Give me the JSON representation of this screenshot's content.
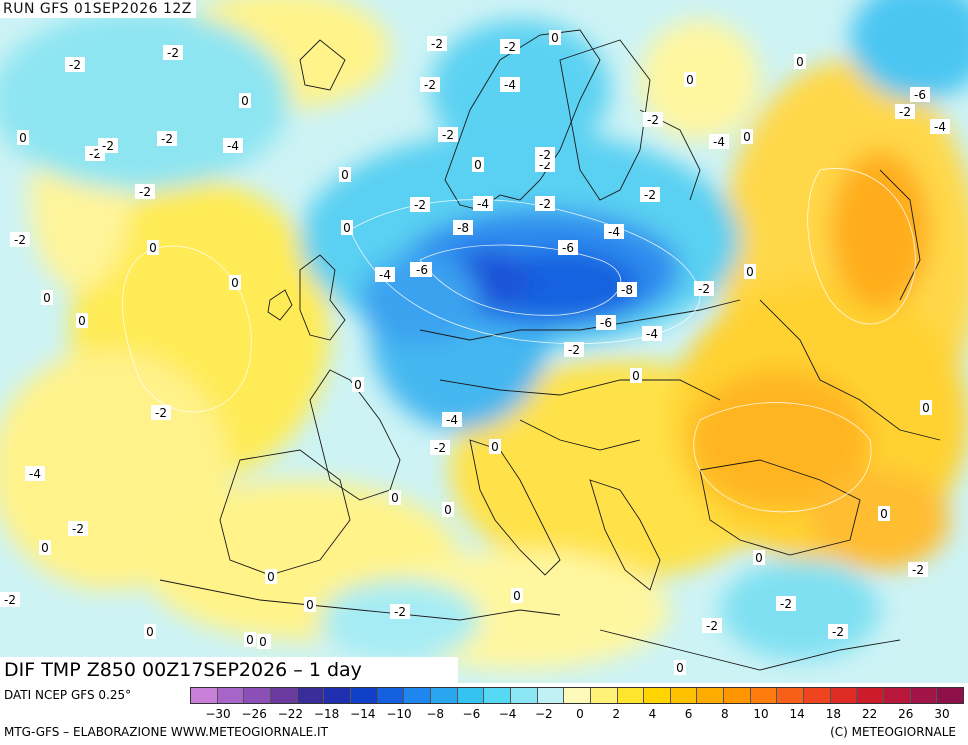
{
  "header": {
    "run_label": "RUN GFS 01SEP2026 12Z"
  },
  "map": {
    "title": "DIF TMP Z850 00Z17SEP2026 – 1 day",
    "contour_labels": [
      "-2",
      "-2",
      "-2",
      "0",
      "0",
      "-2",
      "-2",
      "-2",
      "-4",
      "-2",
      "0",
      "-2",
      "0",
      "0",
      "0",
      "0",
      "0",
      "-2",
      "-4",
      "-2",
      "0",
      "0",
      "-2",
      "0",
      "-6",
      "-4",
      "0",
      "0",
      "-2",
      "-2",
      "-2",
      "-2",
      "0",
      "0",
      "-8",
      "-4",
      "-2",
      "0",
      "-4",
      "-2",
      "0",
      "-2",
      "-6",
      "-4",
      "-8",
      "-2",
      "-6",
      "-4",
      "-2",
      "-2",
      "-6",
      "0",
      "-2",
      "-4",
      "0",
      "0",
      "-2",
      "-4",
      "-6",
      "-2",
      "0",
      "0",
      "0",
      "0",
      "0",
      "0",
      "0",
      "-2",
      "-2",
      "0",
      "0",
      "0",
      "0",
      "0",
      "0",
      "-2",
      "-2",
      "-4",
      "-6",
      "-2"
    ]
  },
  "colorbar": {
    "colors": [
      "#c77fd8",
      "#a865c9",
      "#8c4fb8",
      "#6b3aa0",
      "#3a2d9a",
      "#1f2fb0",
      "#1140c8",
      "#1560e0",
      "#1e86ee",
      "#2aa6f0",
      "#35c3f2",
      "#55d8f2",
      "#8ae6f2",
      "#c0f2f5",
      "#fdf9b8",
      "#fff279",
      "#ffe52e",
      "#ffd400",
      "#ffc100",
      "#ffac00",
      "#ff9600",
      "#ff7d0c",
      "#f8601a",
      "#ee4420",
      "#de2b24",
      "#cc1c2c",
      "#b8173c",
      "#a01545",
      "#8e1048"
    ],
    "ticks": [
      "−30",
      "−26",
      "−22",
      "−18",
      "−14",
      "−10",
      "−8",
      "−6",
      "−4",
      "−2",
      "0",
      "2",
      "4",
      "6",
      "8",
      "10",
      "14",
      "18",
      "22",
      "26",
      "30"
    ]
  },
  "footer": {
    "source": "DATI NCEP GFS 0.25°",
    "credit": "MTG-GFS – ELABORAZIONE WWW.METEOGIORNALE.IT",
    "copyright": "(C) METEOGIORNALE"
  },
  "icons": [
    "temperature-anomaly-map"
  ]
}
